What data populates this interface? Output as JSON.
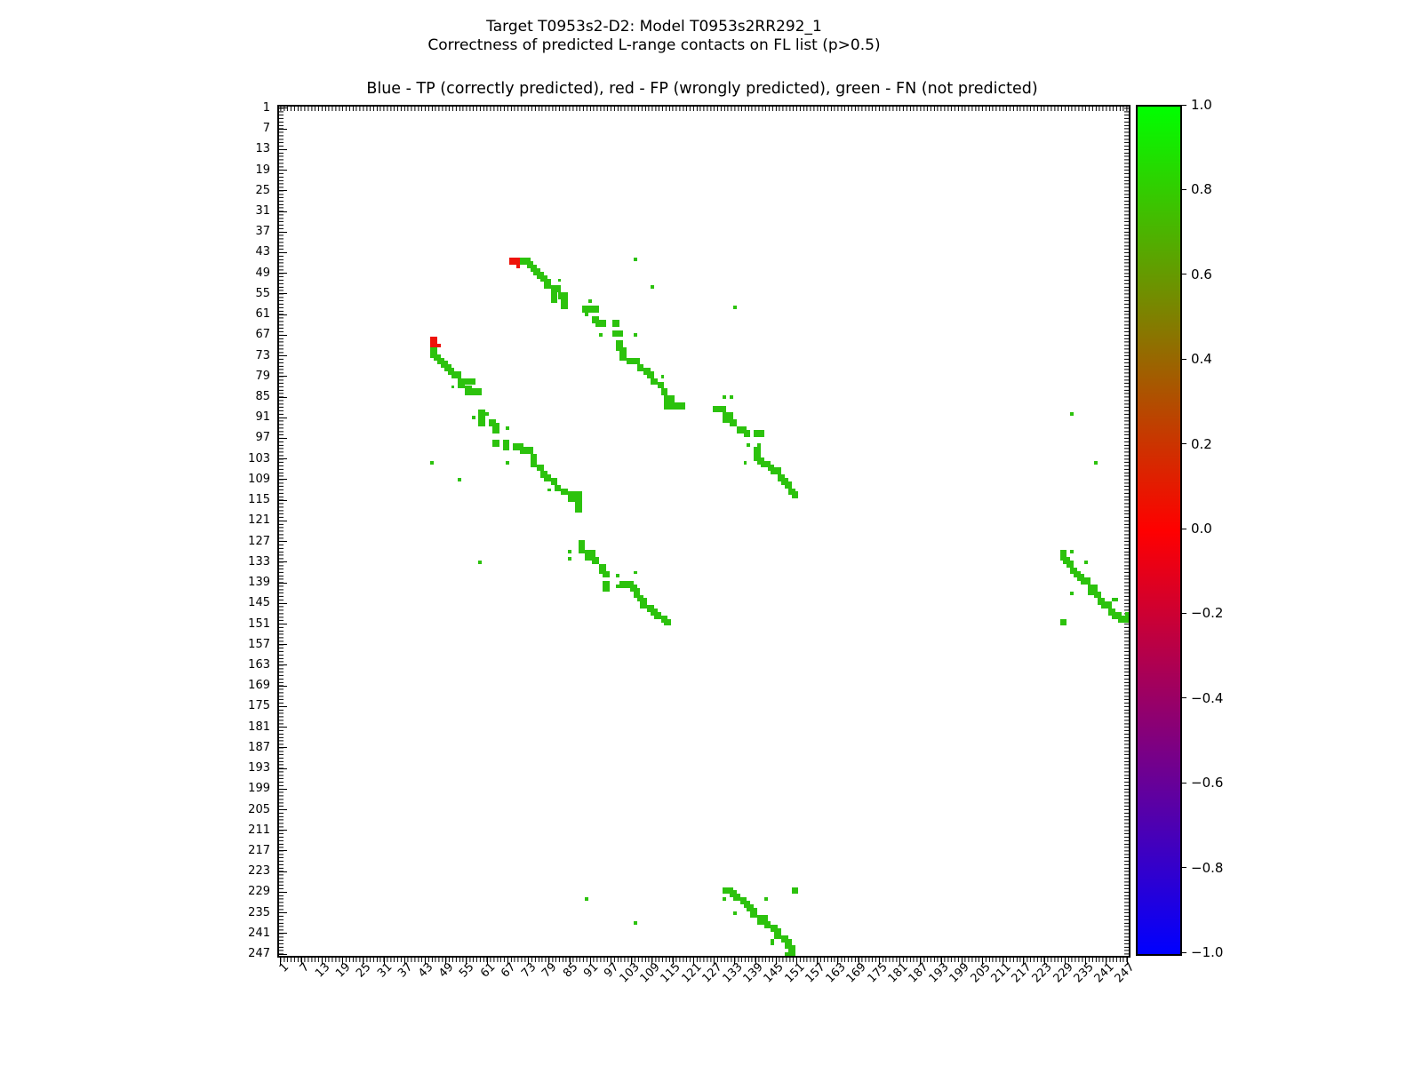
{
  "chart_data": {
    "type": "heatmap",
    "title": "Target T0953s2-D2: Model T0953s2RR292_1",
    "subtitle": "Correctness of predicted L-range contacts on FL list (p>0.5)",
    "axes_note": "Blue - TP (correctly predicted), red - FP (wrongly predicted), green - FN (not predicted)",
    "axis_range": [
      1,
      247
    ],
    "x_ticks": [
      1,
      7,
      13,
      19,
      25,
      31,
      37,
      43,
      49,
      55,
      61,
      67,
      73,
      79,
      85,
      91,
      97,
      103,
      109,
      115,
      121,
      127,
      133,
      139,
      145,
      151,
      157,
      163,
      169,
      175,
      181,
      187,
      193,
      199,
      205,
      211,
      217,
      223,
      229,
      235,
      241,
      247
    ],
    "y_ticks": [
      1,
      7,
      13,
      19,
      25,
      31,
      37,
      43,
      49,
      55,
      61,
      67,
      73,
      79,
      85,
      91,
      97,
      103,
      109,
      115,
      121,
      127,
      133,
      139,
      145,
      151,
      157,
      163,
      169,
      175,
      181,
      187,
      193,
      199,
      205,
      211,
      217,
      223,
      229,
      235,
      241,
      247
    ],
    "colorbar_ticks": [
      "1.0",
      "0.8",
      "0.6",
      "0.4",
      "0.2",
      "0.0",
      "−0.2",
      "−0.4",
      "−0.6",
      "−0.8",
      "−1.0"
    ],
    "colorbar_gradient": [
      "#00ff00",
      "#ff0000",
      "#0000ff"
    ],
    "colorbar_range": [
      -1.0,
      1.0
    ],
    "point_colors": {
      "tp": "#0000ff",
      "fp": "#ee1309",
      "fn": "#2cc20d"
    },
    "symmetric": true,
    "fp_rects": [
      [
        45,
        68,
        3,
        2
      ],
      [
        47,
        70,
        1,
        1
      ]
    ],
    "fn_rects": [
      [
        45,
        71,
        3,
        2
      ],
      [
        46,
        73,
        2,
        2
      ],
      [
        47,
        74,
        2,
        2
      ],
      [
        48,
        75,
        2,
        2
      ],
      [
        49,
        76,
        2,
        2
      ],
      [
        50,
        77,
        2,
        2
      ],
      [
        51,
        78,
        2,
        3
      ],
      [
        51,
        82,
        1,
        1
      ],
      [
        53,
        80,
        3,
        2
      ],
      [
        55,
        80,
        2,
        3
      ],
      [
        55,
        82,
        3,
        2
      ],
      [
        57,
        83,
        2,
        3
      ],
      [
        57,
        91,
        1,
        1
      ],
      [
        59,
        89,
        2,
        2
      ],
      [
        59,
        91,
        3,
        2
      ],
      [
        61,
        90,
        1,
        1
      ],
      [
        62,
        92,
        2,
        2
      ],
      [
        63,
        93,
        3,
        2
      ],
      [
        63,
        98,
        2,
        2
      ],
      [
        66,
        98,
        3,
        2
      ],
      [
        67,
        94,
        1,
        1
      ],
      [
        67,
        104,
        1,
        1
      ],
      [
        69,
        99,
        2,
        3
      ],
      [
        71,
        100,
        2,
        2
      ],
      [
        73,
        100,
        2,
        2
      ],
      [
        74,
        102,
        2,
        2
      ],
      [
        74,
        104,
        2,
        2
      ],
      [
        76,
        105,
        2,
        2
      ],
      [
        77,
        107,
        2,
        2
      ],
      [
        78,
        108,
        2,
        2
      ],
      [
        79,
        112,
        1,
        1
      ],
      [
        80,
        109,
        2,
        2
      ],
      [
        81,
        111,
        2,
        2
      ],
      [
        83,
        112,
        2,
        2
      ],
      [
        84,
        113,
        1,
        3
      ],
      [
        85,
        114,
        2,
        2
      ],
      [
        87,
        113,
        4,
        2
      ],
      [
        87,
        116,
        3,
        2
      ],
      [
        45,
        104,
        1,
        1
      ],
      [
        53,
        109,
        1,
        1
      ],
      [
        59,
        133,
        1,
        1
      ],
      [
        85,
        130,
        1,
        1
      ],
      [
        85,
        132,
        1,
        1
      ],
      [
        88,
        127,
        4,
        2
      ],
      [
        90,
        130,
        3,
        3
      ],
      [
        92,
        132,
        2,
        2
      ],
      [
        94,
        134,
        3,
        2
      ],
      [
        95,
        136,
        2,
        2
      ],
      [
        95,
        139,
        3,
        2
      ],
      [
        99,
        137,
        1,
        1
      ],
      [
        99,
        140,
        1,
        1
      ],
      [
        100,
        139,
        2,
        4
      ],
      [
        103,
        140,
        2,
        2
      ],
      [
        104,
        141,
        3,
        2
      ],
      [
        104,
        136,
        1,
        1
      ],
      [
        105,
        143,
        2,
        2
      ],
      [
        106,
        144,
        3,
        2
      ],
      [
        108,
        146,
        2,
        2
      ],
      [
        109,
        147,
        2,
        2
      ],
      [
        110,
        148,
        2,
        2
      ],
      [
        112,
        149,
        2,
        2
      ],
      [
        113,
        150,
        2,
        2
      ],
      [
        90,
        231,
        1,
        1
      ],
      [
        104,
        238,
        1,
        1
      ],
      [
        130,
        228,
        2,
        3
      ],
      [
        130,
        231,
        1,
        1
      ],
      [
        132,
        229,
        2,
        2
      ],
      [
        133,
        230,
        2,
        2
      ],
      [
        133,
        235,
        1,
        1
      ],
      [
        135,
        231,
        2,
        2
      ],
      [
        136,
        232,
        2,
        2
      ],
      [
        137,
        233,
        2,
        2
      ],
      [
        138,
        234,
        3,
        2
      ],
      [
        140,
        236,
        3,
        3
      ],
      [
        142,
        231,
        1,
        1
      ],
      [
        142,
        238,
        2,
        2
      ],
      [
        144,
        239,
        2,
        2
      ],
      [
        144,
        243,
        2,
        1
      ],
      [
        145,
        240,
        3,
        2
      ],
      [
        147,
        242,
        2,
        2
      ],
      [
        148,
        243,
        3,
        2
      ],
      [
        149,
        245,
        3,
        2
      ],
      [
        150,
        228,
        2,
        2
      ],
      [
        148,
        247,
        1,
        2
      ]
    ]
  }
}
